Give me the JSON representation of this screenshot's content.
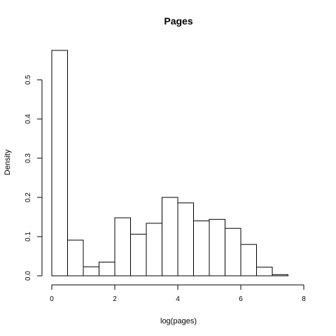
{
  "chart_data": {
    "type": "bar",
    "title": "Pages",
    "xlabel": "log(pages)",
    "ylabel": "Density",
    "xlim": [
      0,
      8
    ],
    "ylim": [
      0,
      0.575
    ],
    "x_ticks": [
      0,
      2,
      4,
      6,
      8
    ],
    "y_ticks": [
      0.0,
      0.1,
      0.2,
      0.3,
      0.4,
      0.5
    ],
    "x_tick_labels": [
      "0",
      "2",
      "4",
      "6",
      "8"
    ],
    "y_tick_labels": [
      "0.0",
      "0.1",
      "0.2",
      "0.3",
      "0.4",
      "0.5"
    ],
    "bin_width": 0.5,
    "bins": [
      {
        "x0": 0.0,
        "x1": 0.5,
        "density": 0.575
      },
      {
        "x0": 0.5,
        "x1": 1.0,
        "density": 0.091
      },
      {
        "x0": 1.0,
        "x1": 1.5,
        "density": 0.023
      },
      {
        "x0": 1.5,
        "x1": 2.0,
        "density": 0.035
      },
      {
        "x0": 2.0,
        "x1": 2.5,
        "density": 0.148
      },
      {
        "x0": 2.5,
        "x1": 3.0,
        "density": 0.106
      },
      {
        "x0": 3.0,
        "x1": 3.5,
        "density": 0.134
      },
      {
        "x0": 3.5,
        "x1": 4.0,
        "density": 0.2
      },
      {
        "x0": 4.0,
        "x1": 4.5,
        "density": 0.186
      },
      {
        "x0": 4.5,
        "x1": 5.0,
        "density": 0.14
      },
      {
        "x0": 5.0,
        "x1": 5.5,
        "density": 0.144
      },
      {
        "x0": 5.5,
        "x1": 6.0,
        "density": 0.121
      },
      {
        "x0": 6.0,
        "x1": 6.5,
        "density": 0.08
      },
      {
        "x0": 6.5,
        "x1": 7.0,
        "density": 0.022
      },
      {
        "x0": 7.0,
        "x1": 7.5,
        "density": 0.003
      },
      {
        "x0": 7.5,
        "x1": 8.0,
        "density": 0.0
      }
    ],
    "colors": {
      "bar_fill": "#ffffff",
      "bar_stroke": "#000000"
    }
  }
}
